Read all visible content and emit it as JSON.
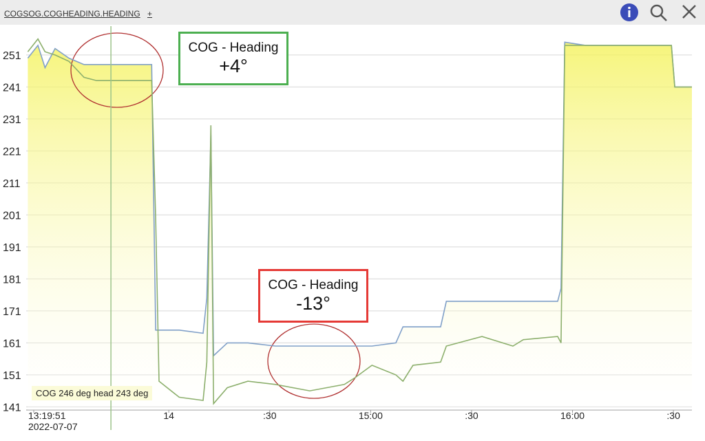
{
  "toolbar": {
    "links": [
      "COGSOG.COG",
      "HEADING.HEADING",
      "+"
    ]
  },
  "chart_data": {
    "type": "line",
    "x": [
      18.1,
      21.1,
      23.2,
      26.2,
      30.3,
      34.8,
      38.5,
      46.7,
      54.9,
      56.1,
      57.1,
      63.1,
      70.2,
      71.3,
      72.5,
      73.3,
      77.4,
      83.5,
      91.7,
      101.9,
      112.2,
      115.2,
      120.4,
      127.5,
      129.6,
      132.6,
      140.8,
      142.5,
      153.1,
      162.3,
      165.4,
      175.6,
      176.6,
      177.7,
      183.8,
      194.0,
      209.4,
      210.4,
      215.5
    ],
    "series": [
      {
        "name": "COGSOG.COG",
        "color": "#7f9fc8",
        "values": [
          250,
          254,
          247,
          253,
          250,
          248,
          248,
          248,
          248,
          165,
          165,
          165,
          164,
          175,
          226,
          157,
          161,
          161,
          160,
          160,
          160,
          160,
          160,
          161,
          166,
          166,
          166,
          174,
          174,
          174,
          174,
          174,
          178,
          255,
          254,
          254,
          254,
          241,
          241
        ]
      },
      {
        "name": "HEADING.HEADING",
        "color": "#8caf6c",
        "values": [
          252,
          256,
          252,
          251,
          249,
          244,
          243,
          243,
          243,
          200,
          149,
          144,
          143,
          155,
          229,
          142,
          147,
          149,
          148,
          146,
          148,
          150,
          154,
          151,
          149,
          154,
          155,
          160,
          163,
          160,
          162,
          163,
          161,
          254,
          254,
          254,
          254,
          241,
          241
        ]
      }
    ],
    "xlim": [
      17.6,
      215.5
    ],
    "ylim": [
      140,
      260
    ],
    "yticks": [
      141,
      151,
      161,
      171,
      181,
      191,
      201,
      211,
      221,
      231,
      241,
      251
    ],
    "xticks": [
      {
        "value": 19.85,
        "label": "13:19:51"
      },
      {
        "value": 60,
        "label": "14"
      },
      {
        "value": 90,
        "label": ":30"
      },
      {
        "value": 120,
        "label": "15:00"
      },
      {
        "value": 150,
        "label": ":30"
      },
      {
        "value": 180,
        "label": "16:00"
      },
      {
        "value": 210,
        "label": ":30"
      }
    ],
    "x_date": "2022-07-07",
    "grid": true,
    "cursor_x": 42.8,
    "tooltip": "COG 246 deg head 243 deg",
    "annotations": [
      {
        "title": "COG - Heading",
        "value": "+4°",
        "color": "#4caf50"
      },
      {
        "title": "COG - Heading",
        "value": "-13°",
        "color": "#e53935"
      }
    ]
  }
}
